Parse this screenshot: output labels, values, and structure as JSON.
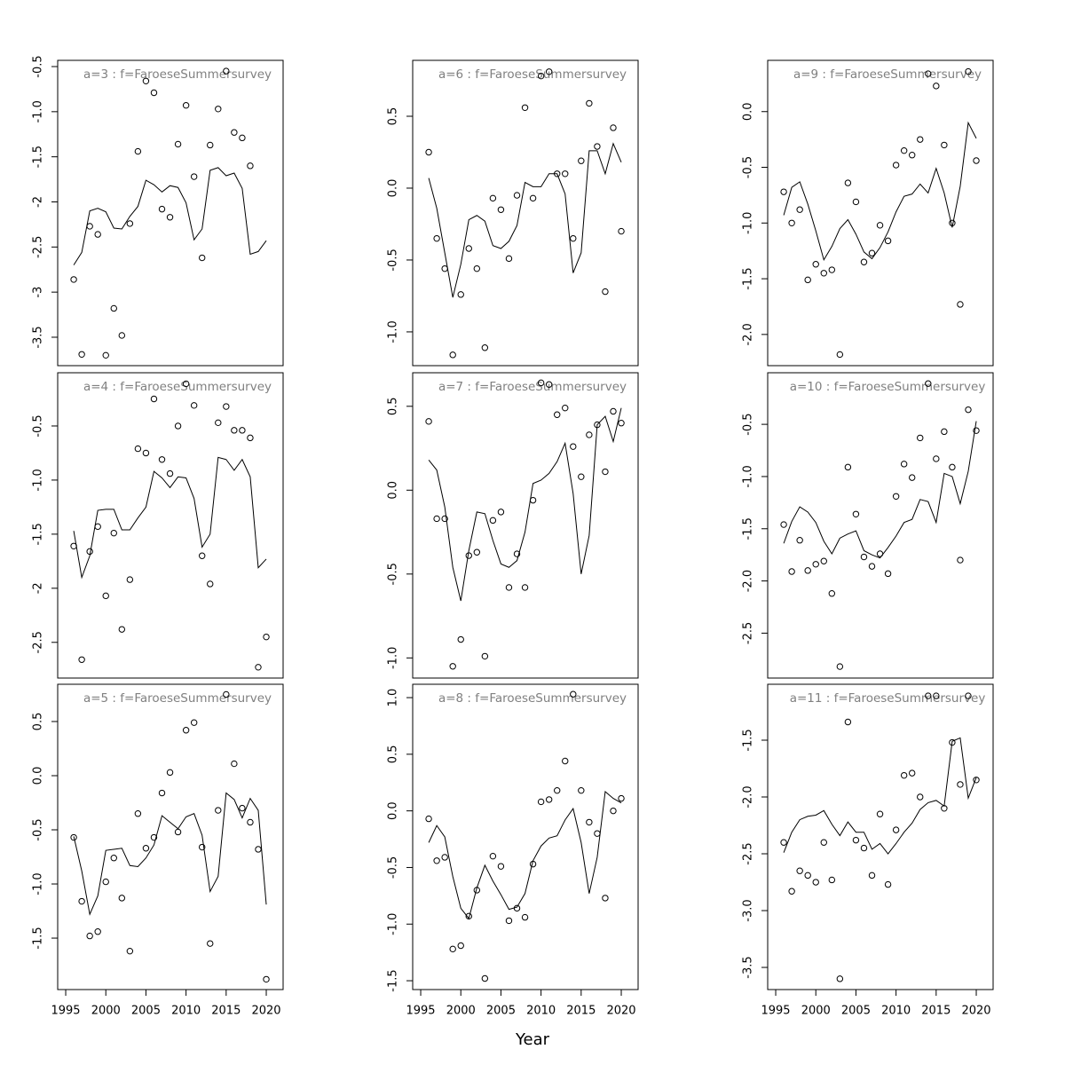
{
  "xlabel": "Year",
  "chart_data": [
    {
      "type": "line",
      "title": "a=3  :  f=FaroeseSummersurvey",
      "x": [
        1996,
        1997,
        1998,
        1999,
        2000,
        2001,
        2002,
        2003,
        2004,
        2005,
        2006,
        2007,
        2008,
        2009,
        2010,
        2011,
        2012,
        2013,
        2014,
        2015,
        2016,
        2017,
        2018,
        2019,
        2020
      ],
      "series": [
        {
          "marker": "circle",
          "color": "#000000",
          "values": [
            -2.86,
            -3.69,
            -2.27,
            -2.36,
            -3.7,
            -3.18,
            -3.48,
            -2.24,
            -1.44,
            -0.66,
            -0.79,
            -2.08,
            -2.17,
            -1.36,
            -0.93,
            -1.72,
            -2.62,
            -1.37,
            -0.97,
            -0.55,
            -1.23,
            -1.29,
            -1.6,
            null,
            null
          ]
        },
        {
          "marker": "none",
          "color": "#000000",
          "values": [
            -2.7,
            -2.56,
            -2.1,
            -2.07,
            -2.11,
            -2.29,
            -2.3,
            -2.16,
            -2.05,
            -1.76,
            -1.81,
            -1.89,
            -1.82,
            -1.84,
            -2.01,
            -2.42,
            -2.3,
            -1.65,
            -1.62,
            -1.71,
            -1.68,
            -1.85,
            -2.58,
            -2.55,
            -2.43
          ]
        }
      ],
      "xlim": [
        1994,
        2022.1
      ],
      "ylim": [
        -3.815,
        -0.431
      ],
      "yticks": [
        -3.5,
        -3,
        -2.5,
        -2,
        -1.5,
        {
          "value": -1,
          "label": "-1.0"
        },
        -0.5
      ]
    },
    {
      "type": "line",
      "title": "a=4  :  f=FaroeseSummersurvey",
      "x": [
        1996,
        1997,
        1998,
        1999,
        2000,
        2001,
        2002,
        2003,
        2004,
        2005,
        2006,
        2007,
        2008,
        2009,
        2010,
        2011,
        2012,
        2013,
        2014,
        2015,
        2016,
        2017,
        2018,
        2019,
        2020
      ],
      "series": [
        {
          "marker": "circle",
          "color": "#000000",
          "values": [
            -1.61,
            -2.66,
            -1.66,
            -1.43,
            -2.07,
            -1.49,
            -2.38,
            -1.92,
            -0.71,
            -0.75,
            -0.25,
            -0.81,
            -0.94,
            -0.5,
            -0.11,
            -0.31,
            -1.7,
            -1.96,
            -0.47,
            -0.32,
            -0.54,
            -0.54,
            -0.61,
            -2.73,
            -2.45
          ]
        },
        {
          "marker": "none",
          "color": "#000000",
          "values": [
            -1.47,
            -1.9,
            -1.7,
            -1.28,
            -1.27,
            -1.27,
            -1.46,
            -1.46,
            -1.35,
            -1.25,
            -0.92,
            -0.98,
            -1.07,
            -0.97,
            -0.98,
            -1.17,
            -1.62,
            -1.5,
            -0.79,
            -0.81,
            -0.91,
            -0.81,
            -0.97,
            -1.81,
            -1.73
          ]
        }
      ],
      "xlim": [
        1994,
        2022.1
      ],
      "ylim": [
        -2.83,
        -0.008
      ],
      "yticks": [
        -2.5,
        -2,
        -1.5,
        {
          "value": -1,
          "label": "-1.0"
        },
        -0.5
      ]
    },
    {
      "type": "line",
      "title": "a=5  :  f=FaroeseSummersurvey",
      "x": [
        1996,
        1997,
        1998,
        1999,
        2000,
        2001,
        2002,
        2003,
        2004,
        2005,
        2006,
        2007,
        2008,
        2009,
        2010,
        2011,
        2012,
        2013,
        2014,
        2015,
        2016,
        2017,
        2018,
        2019,
        2020
      ],
      "series": [
        {
          "marker": "circle",
          "color": "#000000",
          "values": [
            -0.57,
            -1.16,
            -1.48,
            -1.44,
            -0.98,
            -0.76,
            -1.13,
            -1.62,
            -0.35,
            -0.67,
            -0.57,
            -0.16,
            0.03,
            -0.52,
            0.42,
            0.49,
            -0.66,
            -1.55,
            -0.32,
            0.75,
            0.11,
            -0.3,
            -0.43,
            -0.68,
            -1.88
          ]
        },
        {
          "marker": "none",
          "color": "#000000",
          "values": [
            -0.56,
            -0.88,
            -1.28,
            -1.11,
            -0.69,
            -0.68,
            -0.67,
            -0.83,
            -0.84,
            -0.76,
            -0.64,
            -0.37,
            -0.43,
            -0.49,
            -0.38,
            -0.35,
            -0.55,
            -1.07,
            -0.93,
            -0.16,
            -0.22,
            -0.39,
            -0.21,
            -0.32,
            -1.19
          ]
        }
      ],
      "xlim": [
        1994,
        2022.1
      ],
      "ylim": [
        -1.975,
        0.844
      ],
      "xticks": [
        1995,
        2000,
        2005,
        2010,
        2015,
        2020
      ],
      "yticks": [
        -1.5,
        {
          "value": -1,
          "label": "-1.0"
        },
        -0.5,
        {
          "value": 0,
          "label": "0.0"
        },
        0.5
      ]
    },
    {
      "type": "line",
      "title": "a=6  :  f=FaroeseSummersurvey",
      "x": [
        1996,
        1997,
        1998,
        1999,
        2000,
        2001,
        2002,
        2003,
        2004,
        2005,
        2006,
        2007,
        2008,
        2009,
        2010,
        2011,
        2012,
        2013,
        2014,
        2015,
        2016,
        2017,
        2018,
        2019,
        2020
      ],
      "series": [
        {
          "marker": "circle",
          "color": "#000000",
          "values": [
            0.25,
            -0.35,
            -0.56,
            -1.16,
            -0.74,
            -0.42,
            -0.56,
            -1.11,
            -0.07,
            -0.15,
            -0.49,
            -0.05,
            0.56,
            -0.07,
            0.78,
            0.81,
            0.1,
            0.1,
            -0.35,
            0.19,
            0.59,
            0.29,
            -0.72,
            0.42,
            -0.3
          ]
        },
        {
          "marker": "none",
          "color": "#000000",
          "values": [
            0.07,
            -0.14,
            -0.45,
            -0.76,
            -0.53,
            -0.22,
            -0.19,
            -0.23,
            -0.4,
            -0.42,
            -0.37,
            -0.26,
            0.04,
            0.01,
            0.01,
            0.1,
            0.1,
            -0.04,
            -0.59,
            -0.45,
            0.26,
            0.26,
            0.1,
            0.31,
            0.18
          ]
        }
      ],
      "xlim": [
        1994,
        2022.1
      ],
      "ylim": [
        -1.235,
        0.889
      ],
      "yticks": [
        {
          "value": -1,
          "label": "-1.0"
        },
        -0.5,
        {
          "value": 0,
          "label": "0.0"
        },
        0.5
      ]
    },
    {
      "type": "line",
      "title": "a=7  :  f=FaroeseSummersurvey",
      "x": [
        1996,
        1997,
        1998,
        1999,
        2000,
        2001,
        2002,
        2003,
        2004,
        2005,
        2006,
        2007,
        2008,
        2009,
        2010,
        2011,
        2012,
        2013,
        2014,
        2015,
        2016,
        2017,
        2018,
        2019,
        2020
      ],
      "series": [
        {
          "marker": "circle",
          "color": "#000000",
          "values": [
            0.41,
            -0.17,
            -0.17,
            -1.05,
            -0.89,
            -0.39,
            -0.37,
            -0.99,
            -0.18,
            -0.13,
            -0.58,
            -0.38,
            -0.58,
            -0.06,
            0.64,
            0.63,
            0.45,
            0.49,
            0.26,
            0.08,
            0.33,
            0.39,
            0.11,
            0.47,
            0.4
          ]
        },
        {
          "marker": "none",
          "color": "#000000",
          "values": [
            0.18,
            0.12,
            -0.1,
            -0.46,
            -0.66,
            -0.36,
            -0.13,
            -0.14,
            -0.3,
            -0.44,
            -0.46,
            -0.42,
            -0.25,
            0.04,
            0.06,
            0.1,
            0.17,
            0.28,
            -0.02,
            -0.5,
            -0.27,
            0.39,
            0.44,
            0.29,
            0.49
          ]
        }
      ],
      "xlim": [
        1994,
        2022.1
      ],
      "ylim": [
        -1.12,
        0.7
      ],
      "yticks": [
        {
          "value": -1,
          "label": "-1.0"
        },
        -0.5,
        {
          "value": 0,
          "label": "0.0"
        },
        0.5
      ]
    },
    {
      "type": "line",
      "title": "a=8  :  f=FaroeseSummersurvey",
      "x": [
        1996,
        1997,
        1998,
        1999,
        2000,
        2001,
        2002,
        2003,
        2004,
        2005,
        2006,
        2007,
        2008,
        2009,
        2010,
        2011,
        2012,
        2013,
        2014,
        2015,
        2016,
        2017,
        2018,
        2019,
        2020
      ],
      "series": [
        {
          "marker": "circle",
          "color": "#000000",
          "values": [
            -0.07,
            -0.44,
            -0.41,
            -1.22,
            -1.19,
            -0.93,
            -0.7,
            -1.48,
            -0.4,
            -0.49,
            -0.97,
            -0.86,
            -0.94,
            -0.47,
            0.08,
            0.1,
            0.18,
            0.44,
            1.03,
            0.18,
            -0.1,
            -0.2,
            -0.77,
            0.0,
            0.11
          ]
        },
        {
          "marker": "none",
          "color": "#000000",
          "values": [
            -0.28,
            -0.13,
            -0.23,
            -0.58,
            -0.86,
            -0.95,
            -0.68,
            -0.48,
            -0.62,
            -0.74,
            -0.87,
            -0.85,
            -0.73,
            -0.44,
            -0.31,
            -0.24,
            -0.22,
            -0.08,
            0.02,
            -0.28,
            -0.73,
            -0.41,
            0.17,
            0.11,
            0.07
          ]
        }
      ],
      "xlim": [
        1994,
        2022.1
      ],
      "ylim": [
        -1.578,
        1.118
      ],
      "xticks": [
        1995,
        2000,
        2005,
        2010,
        2015,
        2020
      ],
      "yticks": [
        -1.5,
        {
          "value": -1,
          "label": "-1.0"
        },
        -0.5,
        {
          "value": 0,
          "label": "0.0"
        },
        0.5,
        {
          "value": 1,
          "label": "1.0"
        }
      ]
    },
    {
      "type": "line",
      "title": "a=9  :  f=FaroeseSummersurvey",
      "x": [
        1996,
        1997,
        1998,
        1999,
        2000,
        2001,
        2002,
        2003,
        2004,
        2005,
        2006,
        2007,
        2008,
        2009,
        2010,
        2011,
        2012,
        2013,
        2014,
        2015,
        2016,
        2017,
        2018,
        2019,
        2020
      ],
      "series": [
        {
          "marker": "circle",
          "color": "#000000",
          "values": [
            -0.72,
            -1.0,
            -0.88,
            -1.51,
            -1.37,
            -1.45,
            -1.42,
            -2.18,
            -0.64,
            -0.81,
            -1.35,
            -1.27,
            -1.02,
            -1.16,
            -0.48,
            -0.35,
            -0.39,
            -0.25,
            0.34,
            0.23,
            -0.3,
            -1.0,
            -1.73,
            0.36,
            -0.44
          ]
        },
        {
          "marker": "none",
          "color": "#000000",
          "values": [
            -0.93,
            -0.68,
            -0.63,
            -0.83,
            -1.07,
            -1.33,
            -1.21,
            -1.05,
            -0.97,
            -1.1,
            -1.26,
            -1.32,
            -1.22,
            -1.08,
            -0.9,
            -0.76,
            -0.74,
            -0.65,
            -0.73,
            -0.51,
            -0.73,
            -1.04,
            -0.67,
            -0.1,
            -0.24
          ]
        }
      ],
      "xlim": [
        1994,
        2022.1
      ],
      "ylim": [
        -2.28,
        0.46
      ],
      "yticks": [
        {
          "value": -2,
          "label": "-2.0"
        },
        -1.5,
        {
          "value": -1,
          "label": "-1.0"
        },
        -0.5,
        {
          "value": 0,
          "label": "0.0"
        }
      ]
    },
    {
      "type": "line",
      "title": "a=10  :  f=FaroeseSummersurvey",
      "x": [
        1996,
        1997,
        1998,
        1999,
        2000,
        2001,
        2002,
        2003,
        2004,
        2005,
        2006,
        2007,
        2008,
        2009,
        2010,
        2011,
        2012,
        2013,
        2014,
        2015,
        2016,
        2017,
        2018,
        2019,
        2020
      ],
      "series": [
        {
          "marker": "circle",
          "color": "#000000",
          "values": [
            -1.46,
            -1.91,
            -1.61,
            -1.9,
            -1.84,
            -1.81,
            -2.12,
            -2.82,
            -0.91,
            -1.36,
            -1.77,
            -1.86,
            -1.74,
            -1.93,
            -1.19,
            -0.88,
            -1.01,
            -0.63,
            -0.11,
            -0.83,
            -0.57,
            -0.91,
            -1.8,
            -0.36,
            -0.56
          ]
        },
        {
          "marker": "none",
          "color": "#000000",
          "values": [
            -1.64,
            -1.43,
            -1.29,
            -1.34,
            -1.44,
            -1.62,
            -1.74,
            -1.59,
            -1.55,
            -1.52,
            -1.71,
            -1.75,
            -1.78,
            -1.68,
            -1.57,
            -1.44,
            -1.41,
            -1.22,
            -1.24,
            -1.44,
            -0.97,
            -1.0,
            -1.26,
            -0.95,
            -0.47
          ]
        }
      ],
      "xlim": [
        1994,
        2022.1
      ],
      "ylim": [
        -2.93,
        -0.006
      ],
      "yticks": [
        -2.5,
        {
          "value": -2,
          "label": "-2.0"
        },
        -1.5,
        {
          "value": -1,
          "label": "-1.0"
        },
        -0.5
      ]
    },
    {
      "type": "line",
      "title": "a=11  :  f=FaroeseSummersurvey",
      "x": [
        1996,
        1997,
        1998,
        1999,
        2000,
        2001,
        2002,
        2003,
        2004,
        2005,
        2006,
        2007,
        2008,
        2009,
        2010,
        2011,
        2012,
        2013,
        2014,
        2015,
        2016,
        2017,
        2018,
        2019,
        2020
      ],
      "series": [
        {
          "marker": "circle",
          "color": "#000000",
          "values": [
            -2.4,
            -2.83,
            -2.65,
            -2.69,
            -2.75,
            -2.4,
            -2.73,
            -3.6,
            -1.34,
            -2.38,
            -2.45,
            -2.69,
            -2.15,
            -2.77,
            -2.29,
            -1.81,
            -1.79,
            -2.0,
            -1.11,
            -1.11,
            -2.1,
            -1.52,
            -1.89,
            -1.11,
            -1.85
          ]
        },
        {
          "marker": "none",
          "color": "#000000",
          "values": [
            -2.49,
            -2.31,
            -2.2,
            -2.17,
            -2.16,
            -2.12,
            -2.24,
            -2.34,
            -2.22,
            -2.31,
            -2.31,
            -2.46,
            -2.41,
            -2.5,
            -2.41,
            -2.31,
            -2.23,
            -2.11,
            -2.05,
            -2.03,
            -2.08,
            -1.51,
            -1.48,
            -2.01,
            -1.83
          ]
        }
      ],
      "xlim": [
        1994,
        2022.1
      ],
      "ylim": [
        -3.695,
        -1.008
      ],
      "xticks": [
        1995,
        2000,
        2005,
        2010,
        2015,
        2020
      ],
      "yticks": [
        -3.5,
        {
          "value": -3,
          "label": "-3.0"
        },
        -2.5,
        {
          "value": -2,
          "label": "-2.0"
        },
        -1.5
      ]
    }
  ]
}
